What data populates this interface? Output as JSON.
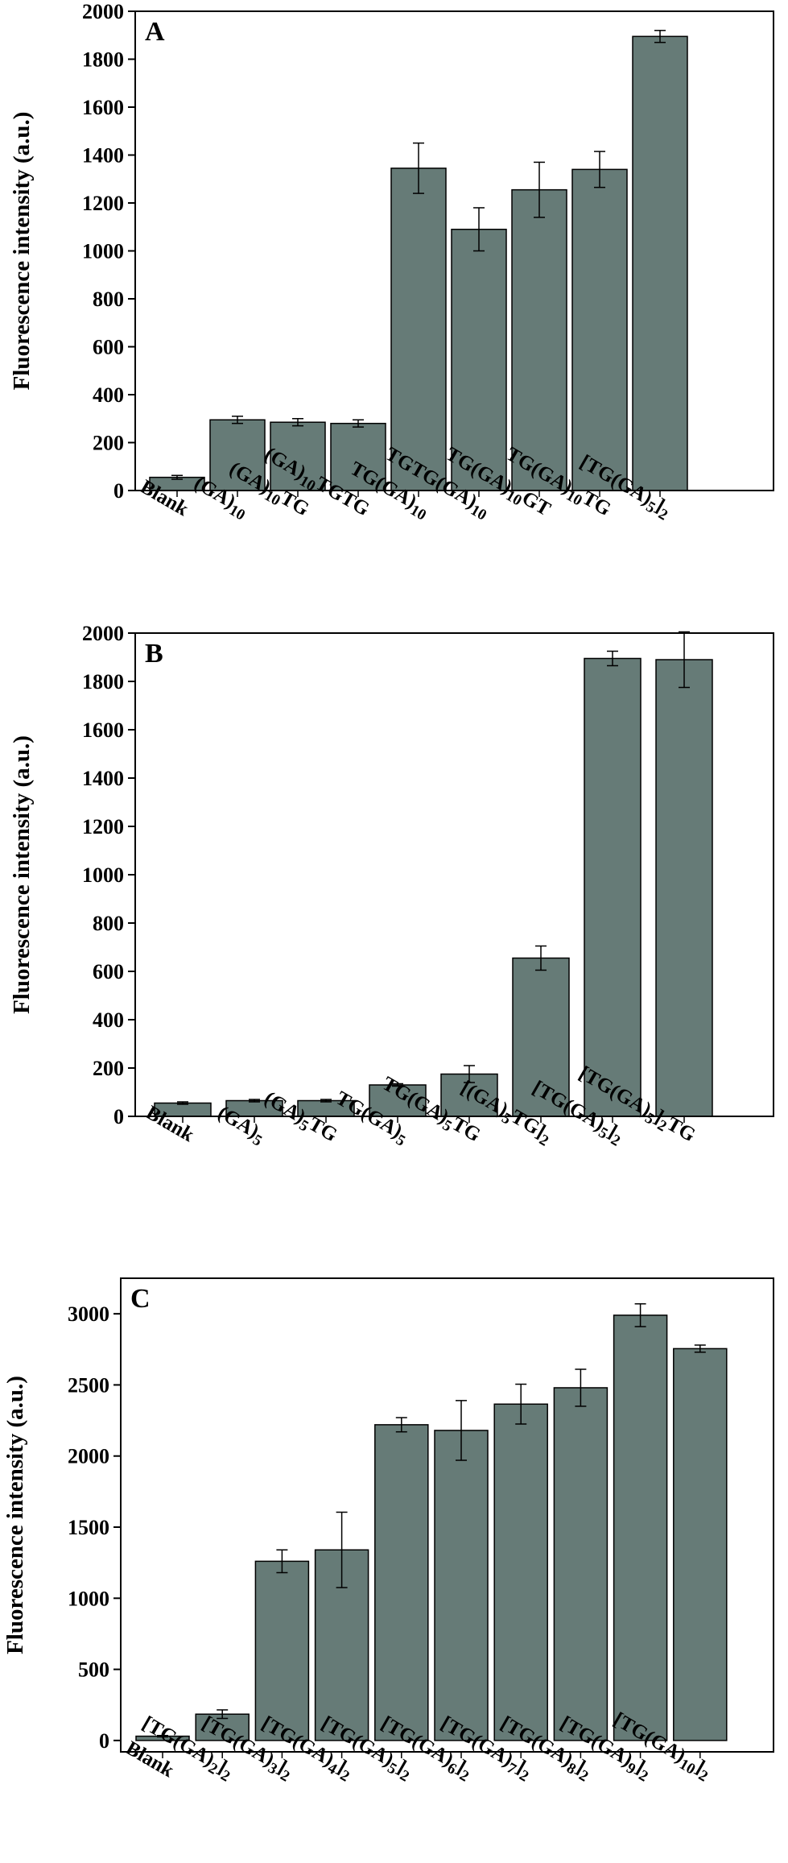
{
  "chart_data": [
    {
      "type": "bar",
      "panel": "A",
      "ylabel": "Fluorescence intensity (a.u.)",
      "ylim": [
        0,
        2000
      ],
      "yticks": [
        0,
        200,
        400,
        600,
        800,
        1000,
        1200,
        1400,
        1600,
        1800,
        2000
      ],
      "categories": [
        "Blank",
        "(GA)10",
        "(GA)10TG",
        "(GA)10TGTG",
        "TG(GA)10",
        "TGTG(GA)10",
        "TG(GA)10GT",
        "TG(GA)10TG",
        "[TG(GA)5]2"
      ],
      "category_parts": [
        [
          [
            "Blank",
            ""
          ]
        ],
        [
          [
            "(GA)",
            ""
          ],
          [
            "10",
            "sub"
          ]
        ],
        [
          [
            "(GA)",
            ""
          ],
          [
            "10",
            "sub"
          ],
          [
            "TG",
            ""
          ]
        ],
        [
          [
            "(GA)",
            ""
          ],
          [
            "10",
            "sub"
          ],
          [
            "TGTG",
            ""
          ]
        ],
        [
          [
            "TG(GA)",
            ""
          ],
          [
            "10",
            "sub"
          ]
        ],
        [
          [
            "TGTG(GA)",
            ""
          ],
          [
            "10",
            "sub"
          ]
        ],
        [
          [
            "TG(GA)",
            ""
          ],
          [
            "10",
            "sub"
          ],
          [
            "GT",
            ""
          ]
        ],
        [
          [
            "TG(GA)",
            ""
          ],
          [
            "10",
            "sub"
          ],
          [
            "TG",
            ""
          ]
        ],
        [
          [
            "[TG(GA)",
            ""
          ],
          [
            "5",
            "sub"
          ],
          [
            "]",
            ""
          ],
          [
            "2",
            "sub"
          ]
        ]
      ],
      "values": [
        55,
        295,
        285,
        280,
        1345,
        1090,
        1255,
        1340,
        1895
      ],
      "errors": [
        8,
        15,
        15,
        15,
        105,
        90,
        115,
        75,
        25
      ]
    },
    {
      "type": "bar",
      "panel": "B",
      "ylabel": "Fluorescence intensity (a.u.)",
      "ylim": [
        0,
        2000
      ],
      "yticks": [
        0,
        200,
        400,
        600,
        800,
        1000,
        1200,
        1400,
        1600,
        1800,
        2000
      ],
      "categories": [
        "Blank",
        "(GA)5",
        "(GA)5TG",
        "TG(GA)5",
        "TG(GA)5TG",
        "[(GA)5TG]2",
        "[TG(GA)5]2",
        "[TG(GA)5]2TG"
      ],
      "category_parts": [
        [
          [
            "Blank",
            ""
          ]
        ],
        [
          [
            "(GA)",
            ""
          ],
          [
            "5",
            "sub"
          ]
        ],
        [
          [
            "(GA)",
            ""
          ],
          [
            "5",
            "sub"
          ],
          [
            "TG",
            ""
          ]
        ],
        [
          [
            "TG(GA)",
            ""
          ],
          [
            "5",
            "sub"
          ]
        ],
        [
          [
            "TG(GA)",
            ""
          ],
          [
            "5",
            "sub"
          ],
          [
            "TG",
            ""
          ]
        ],
        [
          [
            "[(GA)",
            ""
          ],
          [
            "5",
            "sub"
          ],
          [
            "TG]",
            ""
          ],
          [
            "2",
            "sub"
          ]
        ],
        [
          [
            "[TG(GA)",
            ""
          ],
          [
            "5",
            "sub"
          ],
          [
            "]",
            ""
          ],
          [
            "2",
            "sub"
          ]
        ],
        [
          [
            "[TG(GA)",
            ""
          ],
          [
            "5",
            "sub"
          ],
          [
            "]",
            ""
          ],
          [
            "2",
            "sub"
          ],
          [
            "TG",
            ""
          ]
        ]
      ],
      "values": [
        55,
        65,
        65,
        130,
        175,
        655,
        1895,
        1890
      ],
      "errors": [
        5,
        5,
        5,
        5,
        35,
        50,
        30,
        115
      ]
    },
    {
      "type": "bar",
      "panel": "C",
      "ylabel": "Fluorescence intensity (a.u.)",
      "ylim": [
        -80,
        3250
      ],
      "yticks": [
        0,
        500,
        1000,
        1500,
        2000,
        2500,
        3000
      ],
      "categories": [
        "Blank",
        "[TG(GA)2]2",
        "[TG(GA)3]2",
        "[TG(GA)4]2",
        "[TG(GA)5]2",
        "[TG(GA)6]2",
        "[TG(GA)7]2",
        "[TG(GA)8]2",
        "[TG(GA)9]2",
        "[TG(GA)10]2"
      ],
      "category_parts": [
        [
          [
            "Blank",
            ""
          ]
        ],
        [
          [
            "[TG(GA)",
            ""
          ],
          [
            "2",
            "sub"
          ],
          [
            "]",
            ""
          ],
          [
            "2",
            "sub"
          ]
        ],
        [
          [
            "[TG(GA)",
            ""
          ],
          [
            "3",
            "sub"
          ],
          [
            "]",
            ""
          ],
          [
            "2",
            "sub"
          ]
        ],
        [
          [
            "[TG(GA)",
            ""
          ],
          [
            "4",
            "sub"
          ],
          [
            "]",
            ""
          ],
          [
            "2",
            "sub"
          ]
        ],
        [
          [
            "[TG(GA)",
            ""
          ],
          [
            "5",
            "sub"
          ],
          [
            "]",
            ""
          ],
          [
            "2",
            "sub"
          ]
        ],
        [
          [
            "[TG(GA)",
            ""
          ],
          [
            "6",
            "sub"
          ],
          [
            "]",
            ""
          ],
          [
            "2",
            "sub"
          ]
        ],
        [
          [
            "[TG(GA)",
            ""
          ],
          [
            "7",
            "sub"
          ],
          [
            "]",
            ""
          ],
          [
            "2",
            "sub"
          ]
        ],
        [
          [
            "[TG(GA)",
            ""
          ],
          [
            "8",
            "sub"
          ],
          [
            "]",
            ""
          ],
          [
            "2",
            "sub"
          ]
        ],
        [
          [
            "[TG(GA)",
            ""
          ],
          [
            "9",
            "sub"
          ],
          [
            "]",
            ""
          ],
          [
            "2",
            "sub"
          ]
        ],
        [
          [
            "[TG(GA)",
            ""
          ],
          [
            "10",
            "sub"
          ],
          [
            "]",
            ""
          ],
          [
            "2",
            "sub"
          ]
        ]
      ],
      "values": [
        30,
        185,
        1260,
        1340,
        2220,
        2180,
        2365,
        2480,
        2990,
        2755
      ],
      "errors": [
        5,
        30,
        80,
        265,
        50,
        210,
        140,
        130,
        80,
        25
      ]
    }
  ],
  "colors": {
    "bar": "#667b77",
    "frame": "#000000"
  }
}
